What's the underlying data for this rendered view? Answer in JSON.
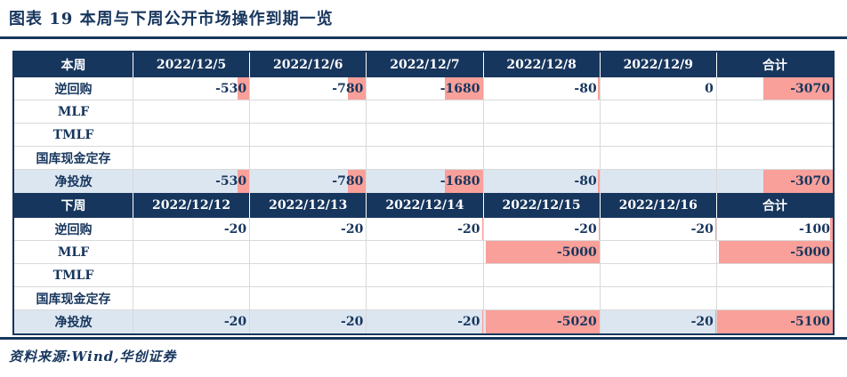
{
  "title": "图表 19  本周与下周公开市场操作到期一览",
  "source_note": "资料来源:Wind,华创证券",
  "colors": {
    "navy": "#17365D",
    "header_text": "#FFFFFF",
    "net_row_bg": "#DCE6F1",
    "data_bar_pink": "#F9A09A",
    "grid_line": "#D9D9D9"
  },
  "bar_scale_max": 5100,
  "tables": [
    {
      "period_label": "本周",
      "date_columns": [
        "2022/12/5",
        "2022/12/6",
        "2022/12/7",
        "2022/12/8",
        "2022/12/9"
      ],
      "total_label": "合计",
      "rows": [
        {
          "label": "逆回购",
          "values": [
            "-530",
            "-780",
            "-1680",
            "-80",
            "0",
            "-3070"
          ],
          "is_net": false
        },
        {
          "label": "MLF",
          "values": [
            "",
            "",
            "",
            "",
            "",
            ""
          ],
          "is_net": false
        },
        {
          "label": "TMLF",
          "values": [
            "",
            "",
            "",
            "",
            "",
            ""
          ],
          "is_net": false
        },
        {
          "label": "国库现金定存",
          "values": [
            "",
            "",
            "",
            "",
            "",
            ""
          ],
          "is_net": false
        },
        {
          "label": "净投放",
          "values": [
            "-530",
            "-780",
            "-1680",
            "-80",
            "",
            "-3070"
          ],
          "is_net": true
        }
      ]
    },
    {
      "period_label": "下周",
      "date_columns": [
        "2022/12/12",
        "2022/12/13",
        "2022/12/14",
        "2022/12/15",
        "2022/12/16"
      ],
      "total_label": "合计",
      "rows": [
        {
          "label": "逆回购",
          "values": [
            "-20",
            "-20",
            "-20",
            "-20",
            "-20",
            "-100"
          ],
          "is_net": false
        },
        {
          "label": "MLF",
          "values": [
            "",
            "",
            "",
            "-5000",
            "",
            "-5000"
          ],
          "is_net": false
        },
        {
          "label": "TMLF",
          "values": [
            "",
            "",
            "",
            "",
            "",
            ""
          ],
          "is_net": false
        },
        {
          "label": "国库现金定存",
          "values": [
            "",
            "",
            "",
            "",
            "",
            ""
          ],
          "is_net": false
        },
        {
          "label": "净投放",
          "values": [
            "-20",
            "-20",
            "-20",
            "-5020",
            "-20",
            "-5100"
          ],
          "is_net": true
        }
      ]
    }
  ]
}
